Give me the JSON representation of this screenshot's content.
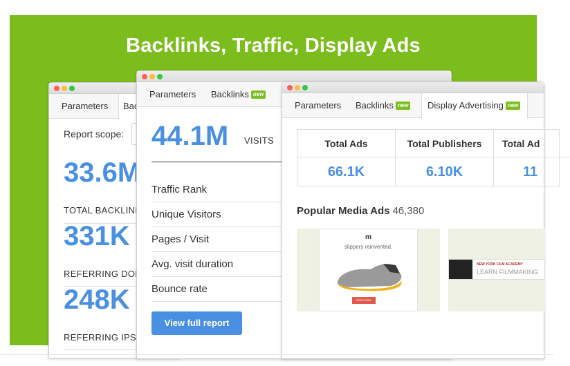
{
  "headline": "Backlinks, Traffic, Display Ads",
  "badge_new": "new",
  "colors": {
    "background": "#7cbd1e",
    "accent_blue": "#4a90e2"
  },
  "window_backlinks": {
    "tabs": [
      "Parameters",
      "Bac"
    ],
    "scope_label": "Report scope:",
    "stats": [
      {
        "value": "33.6M",
        "label": "TOTAL BACKLINK"
      },
      {
        "value": "331K",
        "label": "REFERRING DOM"
      },
      {
        "value": "248K",
        "label": "REFERRING IPS"
      }
    ]
  },
  "window_traffic": {
    "tabs": [
      "Parameters",
      "Backlinks"
    ],
    "visits_value": "44.1M",
    "visits_label": "VISITS",
    "metrics": [
      "Traffic Rank",
      "Unique Visitors",
      "Pages / Visit",
      "Avg. visit duration",
      "Bounce rate"
    ],
    "button_label": "View full report"
  },
  "window_ads": {
    "tabs": [
      "Parameters",
      "Backlinks",
      "Display Advertising"
    ],
    "stats": [
      {
        "header": "Total Ads",
        "value": "66.1K"
      },
      {
        "header": "Total Publishers",
        "value": "6.10K"
      },
      {
        "header": "Total Ad",
        "value": "11"
      }
    ],
    "popular_title": "Popular Media Ads",
    "popular_count": "46,380",
    "ad1": {
      "logo": "m",
      "text": "slippers reinvented.",
      "cta": "SHOP NOW"
    },
    "ad2": {
      "line1": "NEW YORK FILM ACADEMY",
      "line2": "LEARN FILMMAKING"
    }
  }
}
